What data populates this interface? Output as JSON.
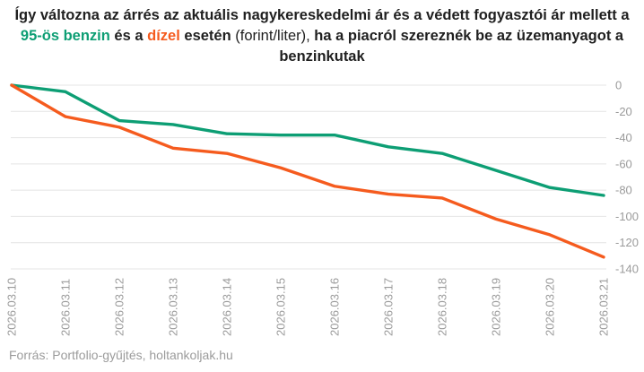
{
  "title": {
    "segments": [
      {
        "text": "Így változna az árrés az aktuális nagykereskedelmi ár és a védett fogyasztói ár mellett a ",
        "bold": true,
        "color": "#1f1f1f"
      },
      {
        "text": "95-ös benzin",
        "bold": true,
        "color": "#0d9e74"
      },
      {
        "text": " és a ",
        "bold": true,
        "color": "#1f1f1f"
      },
      {
        "text": "dízel",
        "bold": true,
        "color": "#f55b1e"
      },
      {
        "text": " esetén ",
        "bold": true,
        "color": "#1f1f1f"
      },
      {
        "text": "(forint/liter),",
        "bold": false,
        "color": "#1f1f1f"
      },
      {
        "text": " ha a piacról szereznék be az üzemanyagot a benzinkutak",
        "bold": true,
        "color": "#1f1f1f"
      }
    ]
  },
  "chart_data": {
    "type": "line",
    "x": [
      "2026.03.10",
      "2026.03.11",
      "2026.03.12",
      "2026.03.13",
      "2026.03.14",
      "2026.03.15",
      "2026.03.16",
      "2026.03.17",
      "2026.03.18",
      "2026.03.19",
      "2026.03.20",
      "2026.03.21"
    ],
    "series": [
      {
        "key": "benzin",
        "name": "95-ös benzin",
        "color": "#0d9e74",
        "values": [
          0,
          -5,
          -27,
          -30,
          -37,
          -38,
          -38,
          -47,
          -52,
          -65,
          -78,
          -84
        ]
      },
      {
        "key": "dizel",
        "name": "dízel",
        "color": "#f55b1e",
        "values": [
          0,
          -24,
          -32,
          -48,
          -52,
          -63,
          -77,
          -83,
          -86,
          -102,
          -114,
          -131
        ]
      }
    ],
    "title": "Így változna az árrés az aktuális nagykereskedelmi ár és a védett fogyasztói ár mellett a 95-ös benzin és a dízel esetén (forint/liter), ha a piacról szereznék be az üzemanyagot a benzinkutak",
    "xlabel": "",
    "ylabel": "",
    "unit": "forint/liter",
    "ylim": [
      -140,
      0
    ],
    "yticks": [
      0,
      -20,
      -40,
      -60,
      -80,
      -100,
      -120,
      -140
    ],
    "grid": true,
    "legend": "none",
    "y_axis_side": "right",
    "x_label_rotation": -90,
    "axis_label_color": "#9b9b9b",
    "grid_color": "#e4e4e4"
  },
  "footer": {
    "source": "Forrás: Portfolio-gyűjtés, holtankoljak.hu"
  }
}
